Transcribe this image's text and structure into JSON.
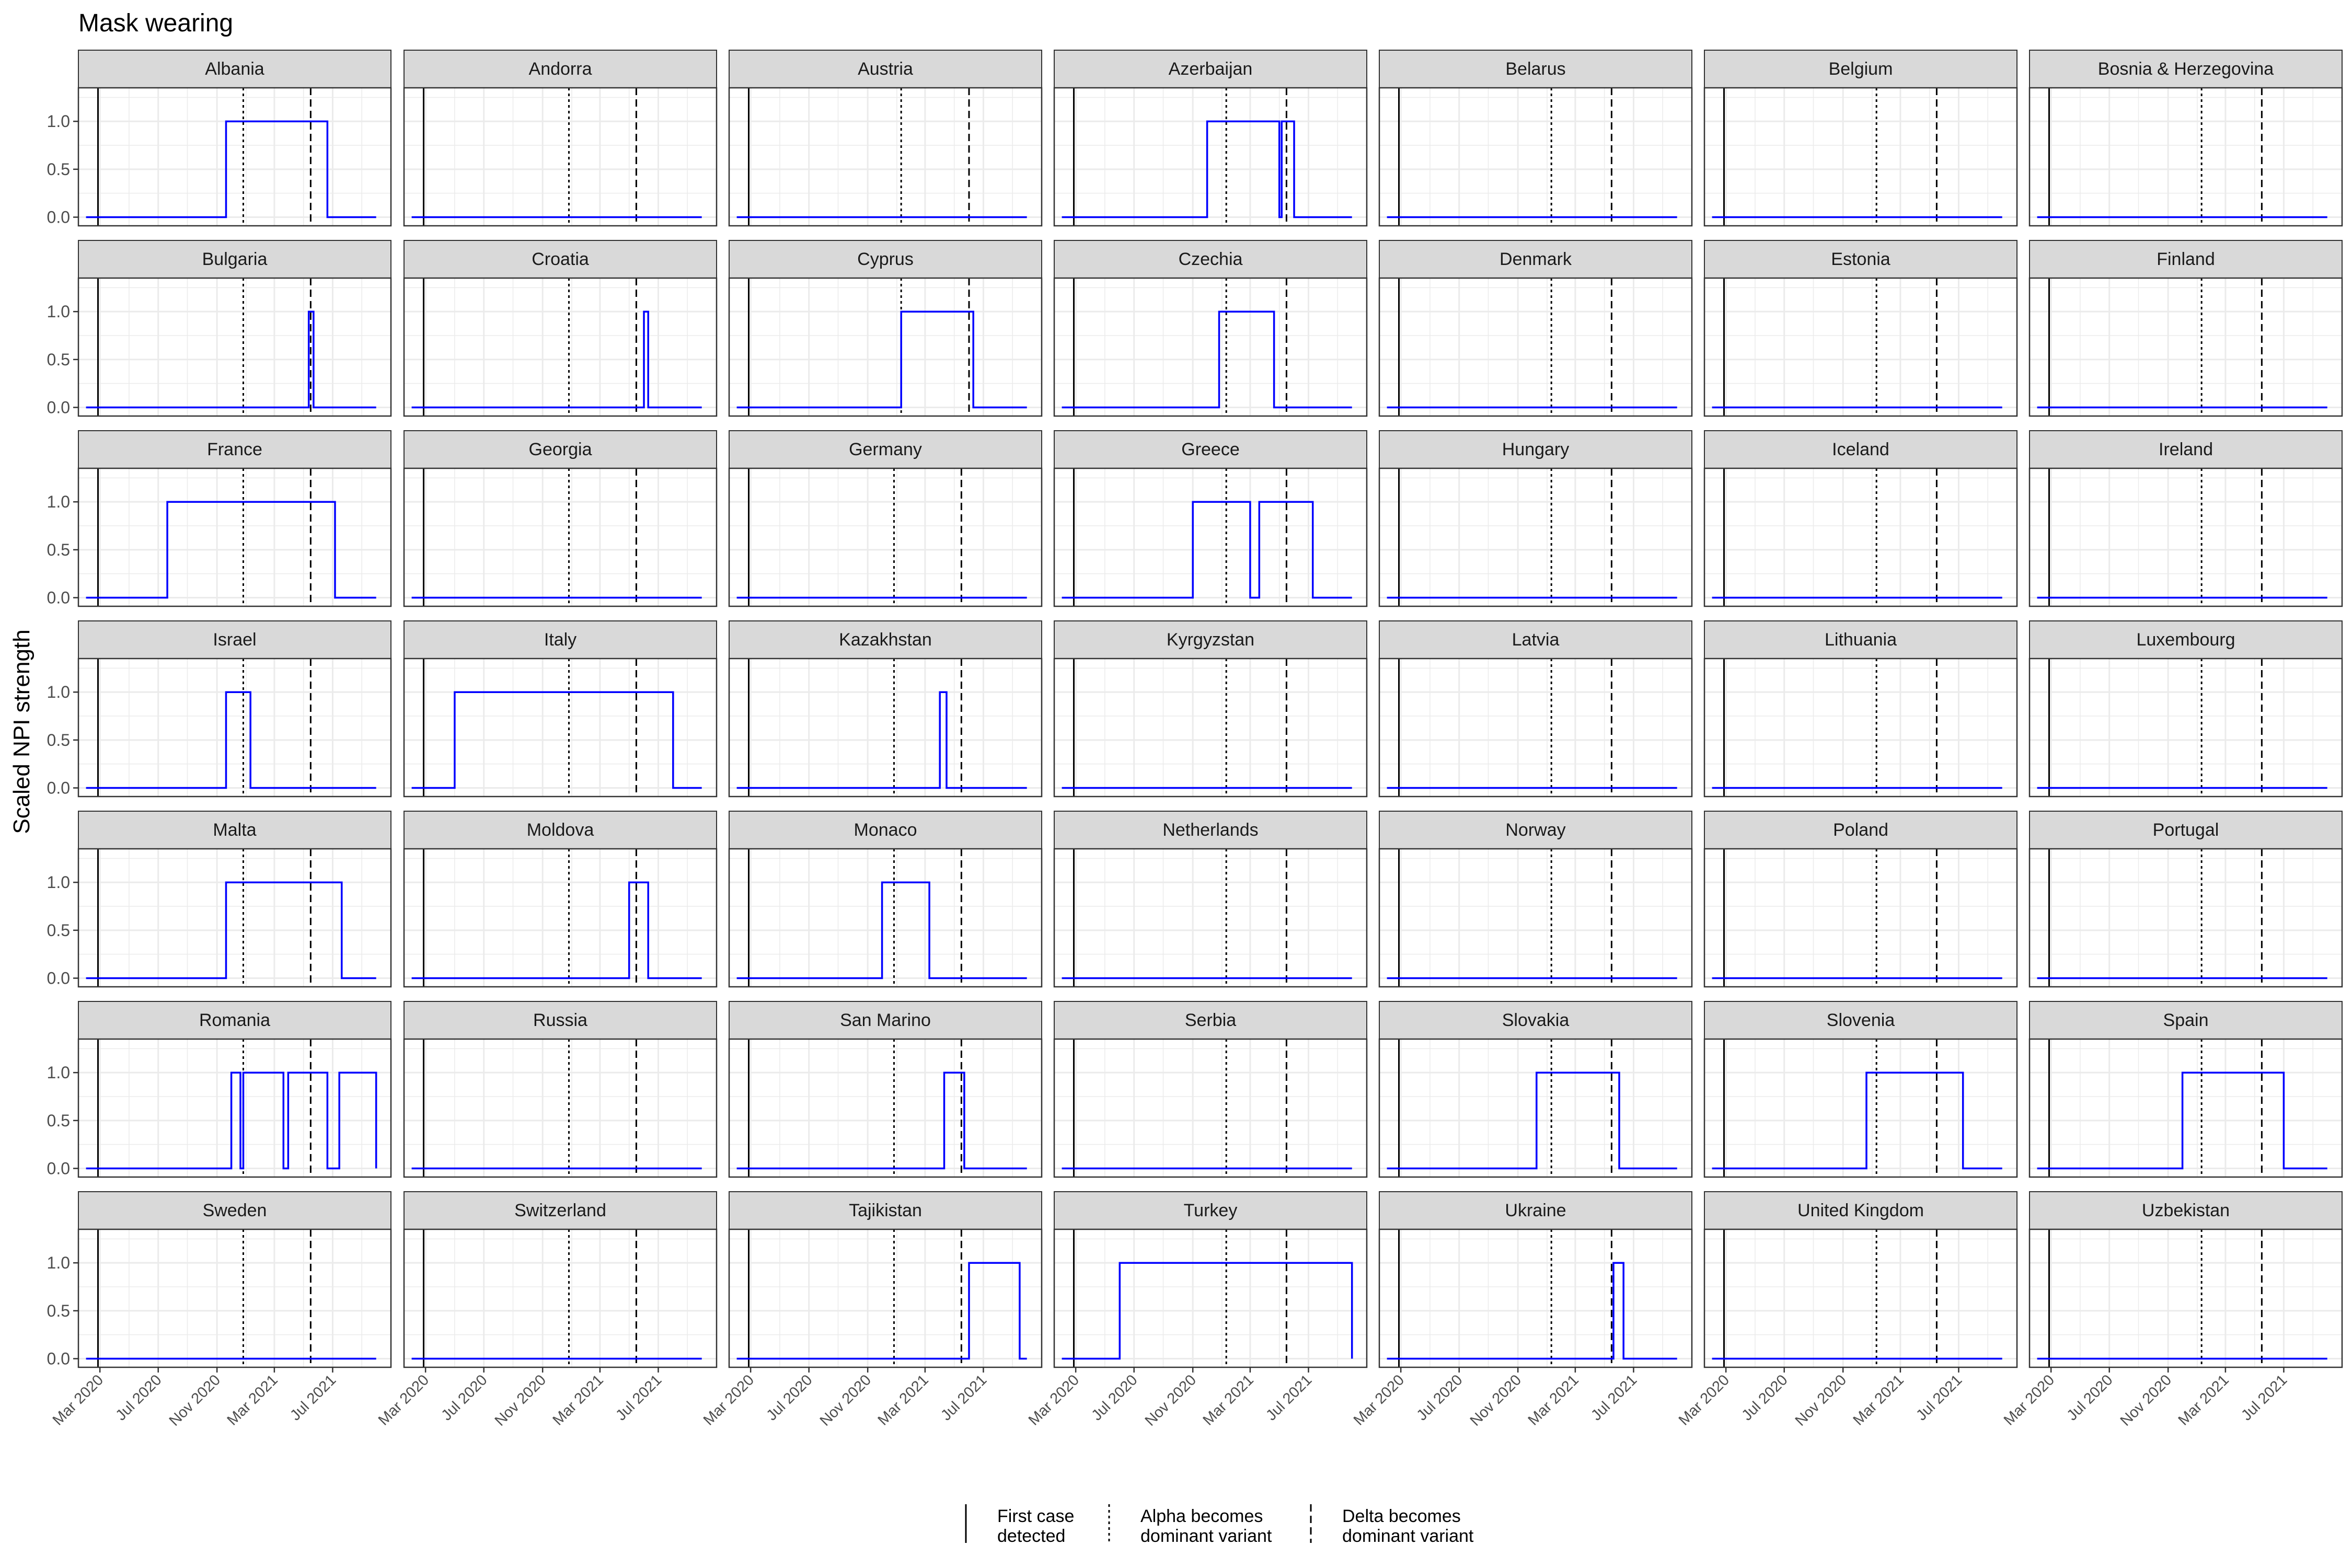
{
  "title": "Mask wearing",
  "colors": {
    "series": "#0000ff",
    "strip": "#d9d9d9",
    "grid": "#ebebeb",
    "border": "#333333",
    "event_line": "#000000"
  },
  "chart_data": {
    "type": "line",
    "layout": "facet-grid",
    "title": "Mask wearing",
    "ylabel": "Scaled NPI strength",
    "xlabel": "",
    "ylim": [
      0,
      1
    ],
    "yticks": [
      0.0,
      0.5,
      1.0
    ],
    "ytick_labels": [
      "0.0",
      "0.5",
      "1.0"
    ],
    "xlim": [
      "2020-01-16",
      "2021-10-31"
    ],
    "xticks": [
      "2020-03-01",
      "2020-07-01",
      "2020-11-01",
      "2021-03-01",
      "2021-07-01"
    ],
    "xtick_labels": [
      "Mar 2020",
      "Jul 2020",
      "Nov 2020",
      "Mar 2021",
      "Jul 2021"
    ],
    "grid": true,
    "legend": {
      "position": "bottom",
      "items": [
        {
          "label": "First case detected",
          "linetype": "solid"
        },
        {
          "label": "Alpha becomes dominant variant",
          "linetype": "dotted"
        },
        {
          "label": "Delta becomes dominant variant",
          "linetype": "dashed"
        }
      ]
    },
    "series_x_start": "2020-02-01",
    "series_x_end": "2021-09-30",
    "panels": [
      {
        "country": "Albania",
        "first_case": "2020-02-26",
        "alpha": "2020-12-26",
        "delta": "2021-05-16",
        "intervals": [
          [
            "2020-11-20",
            "2021-06-20"
          ]
        ]
      },
      {
        "country": "Andorra",
        "first_case": "2020-02-26",
        "alpha": "2020-12-26",
        "delta": "2021-05-16",
        "intervals": []
      },
      {
        "country": "Austria",
        "first_case": "2020-02-26",
        "alpha": "2021-01-10",
        "delta": "2021-06-01",
        "intervals": []
      },
      {
        "country": "Azerbaijan",
        "first_case": "2020-02-26",
        "alpha": "2021-01-10",
        "delta": "2021-05-16",
        "intervals": [
          [
            "2020-12-01",
            "2021-05-01"
          ],
          [
            "2021-05-06",
            "2021-06-01"
          ]
        ]
      },
      {
        "country": "Belarus",
        "first_case": "2020-02-26",
        "alpha": "2021-01-10",
        "delta": "2021-05-16",
        "intervals": []
      },
      {
        "country": "Belgium",
        "first_case": "2020-02-26",
        "alpha": "2021-01-10",
        "delta": "2021-05-16",
        "intervals": []
      },
      {
        "country": "Bosnia & Herzegovina",
        "first_case": "2020-02-26",
        "alpha": "2021-01-10",
        "delta": "2021-05-16",
        "intervals": []
      },
      {
        "country": "Bulgaria",
        "first_case": "2020-02-26",
        "alpha": "2020-12-26",
        "delta": "2021-05-16",
        "intervals": [
          [
            "2021-05-12",
            "2021-05-22"
          ]
        ]
      },
      {
        "country": "Croatia",
        "first_case": "2020-02-26",
        "alpha": "2020-12-26",
        "delta": "2021-05-16",
        "intervals": [
          [
            "2021-06-01",
            "2021-06-10"
          ]
        ]
      },
      {
        "country": "Cyprus",
        "first_case": "2020-02-26",
        "alpha": "2021-01-10",
        "delta": "2021-06-01",
        "intervals": [
          [
            "2021-01-10",
            "2021-06-10"
          ]
        ]
      },
      {
        "country": "Czechia",
        "first_case": "2020-02-26",
        "alpha": "2021-01-10",
        "delta": "2021-05-16",
        "intervals": [
          [
            "2020-12-26",
            "2021-04-20"
          ]
        ]
      },
      {
        "country": "Denmark",
        "first_case": "2020-02-26",
        "alpha": "2021-01-10",
        "delta": "2021-05-16",
        "intervals": []
      },
      {
        "country": "Estonia",
        "first_case": "2020-02-26",
        "alpha": "2021-01-10",
        "delta": "2021-05-16",
        "intervals": []
      },
      {
        "country": "Finland",
        "first_case": "2020-02-26",
        "alpha": "2021-01-10",
        "delta": "2021-05-16",
        "intervals": []
      },
      {
        "country": "France",
        "first_case": "2020-02-26",
        "alpha": "2020-12-26",
        "delta": "2021-05-16",
        "intervals": [
          [
            "2020-07-20",
            "2021-07-06"
          ]
        ]
      },
      {
        "country": "Georgia",
        "first_case": "2020-02-26",
        "alpha": "2020-12-26",
        "delta": "2021-05-16",
        "intervals": []
      },
      {
        "country": "Germany",
        "first_case": "2020-02-26",
        "alpha": "2020-12-26",
        "delta": "2021-05-16",
        "intervals": []
      },
      {
        "country": "Greece",
        "first_case": "2020-02-26",
        "alpha": "2021-01-10",
        "delta": "2021-05-16",
        "intervals": [
          [
            "2020-11-01",
            "2021-03-01"
          ],
          [
            "2021-03-20",
            "2021-07-10"
          ]
        ]
      },
      {
        "country": "Hungary",
        "first_case": "2020-02-26",
        "alpha": "2021-01-10",
        "delta": "2021-05-16",
        "intervals": []
      },
      {
        "country": "Iceland",
        "first_case": "2020-02-26",
        "alpha": "2021-01-10",
        "delta": "2021-05-16",
        "intervals": []
      },
      {
        "country": "Ireland",
        "first_case": "2020-02-26",
        "alpha": "2021-01-10",
        "delta": "2021-05-16",
        "intervals": []
      },
      {
        "country": "Israel",
        "first_case": "2020-02-26",
        "alpha": "2020-12-26",
        "delta": "2021-05-16",
        "intervals": [
          [
            "2020-11-20",
            "2021-01-10"
          ]
        ]
      },
      {
        "country": "Italy",
        "first_case": "2020-02-26",
        "alpha": "2020-12-26",
        "delta": "2021-05-16",
        "intervals": [
          [
            "2020-05-01",
            "2021-08-01"
          ]
        ]
      },
      {
        "country": "Kazakhstan",
        "first_case": "2020-02-26",
        "alpha": "2020-12-26",
        "delta": "2021-05-16",
        "intervals": [
          [
            "2021-04-01",
            "2021-04-15"
          ]
        ]
      },
      {
        "country": "Kyrgyzstan",
        "first_case": "2020-02-26",
        "alpha": "2021-01-10",
        "delta": "2021-05-16",
        "intervals": []
      },
      {
        "country": "Latvia",
        "first_case": "2020-02-26",
        "alpha": "2021-01-10",
        "delta": "2021-05-16",
        "intervals": []
      },
      {
        "country": "Lithuania",
        "first_case": "2020-02-26",
        "alpha": "2021-01-10",
        "delta": "2021-05-16",
        "intervals": []
      },
      {
        "country": "Luxembourg",
        "first_case": "2020-02-26",
        "alpha": "2021-01-10",
        "delta": "2021-05-16",
        "intervals": []
      },
      {
        "country": "Malta",
        "first_case": "2020-02-26",
        "alpha": "2020-12-26",
        "delta": "2021-05-16",
        "intervals": [
          [
            "2020-11-20",
            "2021-07-20"
          ]
        ]
      },
      {
        "country": "Moldova",
        "first_case": "2020-02-26",
        "alpha": "2020-12-26",
        "delta": "2021-05-16",
        "intervals": [
          [
            "2021-05-01",
            "2021-06-10"
          ]
        ]
      },
      {
        "country": "Monaco",
        "first_case": "2020-02-26",
        "alpha": "2020-12-26",
        "delta": "2021-05-16",
        "intervals": [
          [
            "2020-12-01",
            "2021-03-10"
          ]
        ]
      },
      {
        "country": "Netherlands",
        "first_case": "2020-02-26",
        "alpha": "2021-01-10",
        "delta": "2021-05-16",
        "intervals": []
      },
      {
        "country": "Norway",
        "first_case": "2020-02-26",
        "alpha": "2021-01-10",
        "delta": "2021-05-16",
        "intervals": []
      },
      {
        "country": "Poland",
        "first_case": "2020-02-26",
        "alpha": "2021-01-10",
        "delta": "2021-05-16",
        "intervals": []
      },
      {
        "country": "Portugal",
        "first_case": "2020-02-26",
        "alpha": "2021-01-10",
        "delta": "2021-05-16",
        "intervals": []
      },
      {
        "country": "Romania",
        "first_case": "2020-02-26",
        "alpha": "2020-12-26",
        "delta": "2021-05-16",
        "intervals": [
          [
            "2020-12-01",
            "2020-12-20"
          ],
          [
            "2020-12-26",
            "2021-03-20"
          ],
          [
            "2021-03-30",
            "2021-06-20"
          ],
          [
            "2021-07-15",
            "2021-09-30"
          ]
        ]
      },
      {
        "country": "Russia",
        "first_case": "2020-02-26",
        "alpha": "2020-12-26",
        "delta": "2021-05-16",
        "intervals": []
      },
      {
        "country": "San Marino",
        "first_case": "2020-02-26",
        "alpha": "2020-12-26",
        "delta": "2021-05-16",
        "intervals": [
          [
            "2021-04-10",
            "2021-05-22"
          ]
        ]
      },
      {
        "country": "Serbia",
        "first_case": "2020-02-26",
        "alpha": "2021-01-10",
        "delta": "2021-05-16",
        "intervals": []
      },
      {
        "country": "Slovakia",
        "first_case": "2020-02-26",
        "alpha": "2021-01-10",
        "delta": "2021-05-16",
        "intervals": [
          [
            "2020-12-10",
            "2021-06-01"
          ]
        ]
      },
      {
        "country": "Slovenia",
        "first_case": "2020-02-26",
        "alpha": "2021-01-10",
        "delta": "2021-05-16",
        "intervals": [
          [
            "2020-12-20",
            "2021-07-10"
          ]
        ]
      },
      {
        "country": "Spain",
        "first_case": "2020-02-26",
        "alpha": "2021-01-10",
        "delta": "2021-05-16",
        "intervals": [
          [
            "2020-12-01",
            "2021-07-01"
          ]
        ]
      },
      {
        "country": "Sweden",
        "first_case": "2020-02-26",
        "alpha": "2020-12-26",
        "delta": "2021-05-16",
        "intervals": []
      },
      {
        "country": "Switzerland",
        "first_case": "2020-02-26",
        "alpha": "2020-12-26",
        "delta": "2021-05-16",
        "intervals": []
      },
      {
        "country": "Tajikistan",
        "first_case": "2020-02-26",
        "alpha": "2020-12-26",
        "delta": "2021-05-16",
        "intervals": [
          [
            "2021-06-01",
            "2021-09-15"
          ]
        ]
      },
      {
        "country": "Turkey",
        "first_case": "2020-02-26",
        "alpha": "2021-01-10",
        "delta": "2021-05-16",
        "intervals": [
          [
            "2020-06-01",
            "2021-09-30"
          ]
        ]
      },
      {
        "country": "Ukraine",
        "first_case": "2020-02-26",
        "alpha": "2021-01-10",
        "delta": "2021-05-16",
        "intervals": [
          [
            "2021-05-20",
            "2021-06-10"
          ]
        ]
      },
      {
        "country": "United Kingdom",
        "first_case": "2020-02-26",
        "alpha": "2021-01-10",
        "delta": "2021-05-16",
        "intervals": []
      },
      {
        "country": "Uzbekistan",
        "first_case": "2020-02-26",
        "alpha": "2021-01-10",
        "delta": "2021-05-16",
        "intervals": []
      }
    ]
  }
}
